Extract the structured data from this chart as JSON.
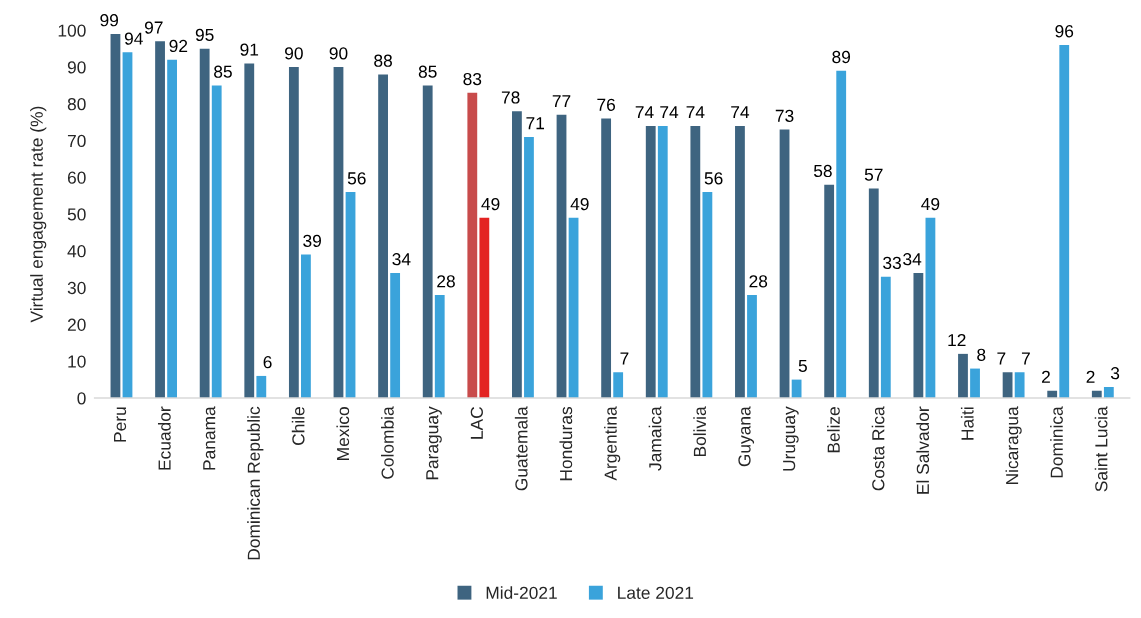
{
  "chart_data": {
    "type": "bar",
    "ylabel": "Virtual engagement rate (%)",
    "categories": [
      "Peru",
      "Ecuador",
      "Panama",
      "Dominican Republic",
      "Chile",
      "Mexico",
      "Colombia",
      "Paraguay",
      "LAC",
      "Guatemala",
      "Honduras",
      "Argentina",
      "Jamaica",
      "Bolivia",
      "Guyana",
      "Uruguay",
      "Belize",
      "Costa Rica",
      "El Salvador",
      "Haiti",
      "Nicaragua",
      "Dominica",
      "Saint Lucia"
    ],
    "series": [
      {
        "name": "Mid-2021",
        "color": "#3e6480",
        "colors": [
          "#3e6480",
          "#3e6480",
          "#3e6480",
          "#3e6480",
          "#3e6480",
          "#3e6480",
          "#3e6480",
          "#3e6480",
          "#c84b4b",
          "#3e6480",
          "#3e6480",
          "#3e6480",
          "#3e6480",
          "#3e6480",
          "#3e6480",
          "#3e6480",
          "#3e6480",
          "#3e6480",
          "#3e6480",
          "#3e6480",
          "#3e6480",
          "#3e6480",
          "#3e6480"
        ],
        "values": [
          99,
          97,
          95,
          91,
          90,
          90,
          88,
          85,
          83,
          78,
          77,
          76,
          74,
          74,
          74,
          73,
          58,
          57,
          34,
          12,
          7,
          2,
          2
        ]
      },
      {
        "name": "Late 2021",
        "color": "#3aa3db",
        "colors": [
          "#3aa3db",
          "#3aa3db",
          "#3aa3db",
          "#3aa3db",
          "#3aa3db",
          "#3aa3db",
          "#3aa3db",
          "#3aa3db",
          "#e32322",
          "#3aa3db",
          "#3aa3db",
          "#3aa3db",
          "#3aa3db",
          "#3aa3db",
          "#3aa3db",
          "#3aa3db",
          "#3aa3db",
          "#3aa3db",
          "#3aa3db",
          "#3aa3db",
          "#3aa3db",
          "#3aa3db",
          "#3aa3db"
        ],
        "values": [
          94,
          92,
          85,
          6,
          39,
          56,
          34,
          28,
          49,
          71,
          49,
          7,
          74,
          56,
          28,
          5,
          89,
          33,
          49,
          8,
          7,
          96,
          3
        ]
      }
    ],
    "ylim": [
      0,
      100
    ],
    "yticks": [
      0,
      10,
      20,
      30,
      40,
      50,
      60,
      70,
      80,
      90,
      100
    ],
    "data_labels": true,
    "legend": "bottom",
    "grid": false
  }
}
